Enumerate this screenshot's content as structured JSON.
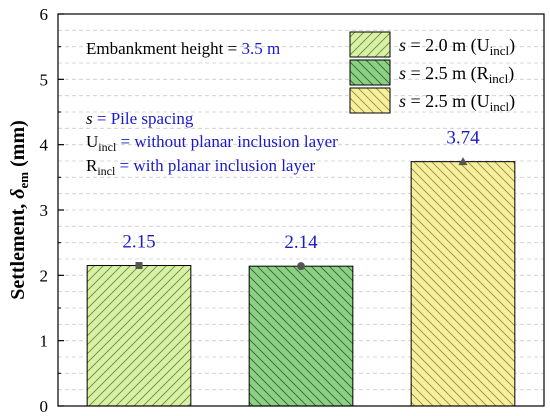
{
  "chart_data": {
    "type": "bar",
    "ylabel": "Settlement, δem (mm)",
    "ylim": [
      0,
      6
    ],
    "yticks": [
      "0",
      "1",
      "2",
      "3",
      "4",
      "5",
      "6"
    ],
    "grid": true,
    "legend_position": "top-right",
    "series": [
      {
        "name": "s = 2.0 m (Uincl)",
        "value": 2.15,
        "label": "2.15",
        "fill": "#d9f0a8",
        "hatch": "#6a8f2e",
        "hatch_dir": "forward",
        "marker": "square"
      },
      {
        "name": "s = 2.5 m (Rincl)",
        "value": 2.14,
        "label": "2.14",
        "fill": "#8ccf85",
        "hatch": "#2e6b2e",
        "hatch_dir": "back",
        "marker": "circle"
      },
      {
        "name": "s = 2.5 m (Uincl)",
        "value": 3.74,
        "label": "3.74",
        "fill": "#f5ef9e",
        "hatch": "#9a8f3a",
        "hatch_dir": "back",
        "marker": "triangle"
      }
    ],
    "annotations": {
      "embankment_label": "Embankment height = ",
      "embankment_value": "3.5 m",
      "spacing_symbol": "s",
      "spacing_text": " = Pile spacing",
      "u_symbol": "U",
      "u_sub": "incl",
      "u_text": " = without planar inclusion layer",
      "r_symbol": "R",
      "r_sub": "incl",
      "r_text": " = with planar inclusion layer"
    }
  },
  "colors": {
    "annotation_blue": "#1a1acc",
    "marker": "#555555",
    "frame": "#000000",
    "grid": "#cccccc"
  }
}
